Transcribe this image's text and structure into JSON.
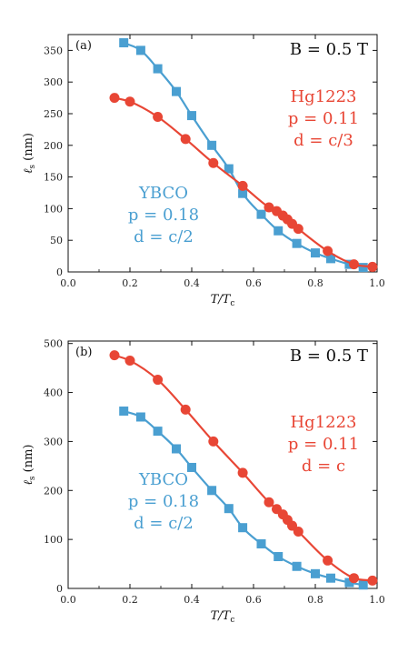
{
  "figure": {
    "colors": {
      "ybco": "#4a9fd1",
      "hg1223": "#e84635"
    },
    "x_tick_labels": [
      "0.0",
      "0.2",
      "0.4",
      "0.6",
      "0.8",
      "1.0"
    ],
    "x_label": "T/Tc"
  },
  "chart_data": [
    {
      "type": "line",
      "panel_label": "(a)",
      "field_text": "B = 0.5 T",
      "xlabel": "T/Tc",
      "ylabel": "ℓs (nm)",
      "xlim": [
        0.0,
        1.0
      ],
      "ylim": [
        0,
        375
      ],
      "y_ticks": [
        0,
        50,
        100,
        150,
        200,
        250,
        300,
        350
      ],
      "grid": false,
      "series": [
        {
          "name": "YBCO",
          "marker": "square",
          "color": "#4a9fd1",
          "label_lines": [
            "YBCO",
            "p = 0.18",
            "d = c/2"
          ],
          "x": [
            0.18,
            0.235,
            0.29,
            0.35,
            0.4,
            0.465,
            0.52,
            0.565,
            0.625,
            0.68,
            0.74,
            0.8,
            0.85,
            0.91,
            0.955
          ],
          "y": [
            362,
            350,
            321,
            285,
            247,
            200,
            163,
            124,
            91,
            65,
            45,
            30,
            21,
            12,
            7
          ]
        },
        {
          "name": "Hg1223",
          "marker": "circle",
          "color": "#e84635",
          "label_lines": [
            "Hg1223",
            "p = 0.11",
            "d = c/3"
          ],
          "x": [
            0.15,
            0.2,
            0.29,
            0.38,
            0.47,
            0.565,
            0.65,
            0.675,
            0.695,
            0.71,
            0.725,
            0.745,
            0.84,
            0.925,
            0.985
          ],
          "y": [
            275,
            269,
            245,
            210,
            172,
            136,
            102,
            96,
            89,
            83,
            76,
            68,
            33,
            12,
            8
          ]
        }
      ]
    },
    {
      "type": "line",
      "panel_label": "(b)",
      "field_text": "B = 0.5 T",
      "xlabel": "T/Tc",
      "ylabel": "ℓs (nm)",
      "xlim": [
        0.0,
        1.0
      ],
      "ylim": [
        0,
        505
      ],
      "y_ticks": [
        0,
        100,
        200,
        300,
        400,
        500
      ],
      "grid": false,
      "series": [
        {
          "name": "YBCO",
          "marker": "square",
          "color": "#4a9fd1",
          "label_lines": [
            "YBCO",
            "p = 0.18",
            "d = c/2"
          ],
          "x": [
            0.18,
            0.235,
            0.29,
            0.35,
            0.4,
            0.465,
            0.52,
            0.565,
            0.625,
            0.68,
            0.74,
            0.8,
            0.85,
            0.91,
            0.955
          ],
          "y": [
            362,
            350,
            321,
            285,
            247,
            200,
            163,
            124,
            91,
            65,
            45,
            30,
            21,
            12,
            7
          ]
        },
        {
          "name": "Hg1223",
          "marker": "circle",
          "color": "#e84635",
          "label_lines": [
            "Hg1223",
            "p = 0.11",
            "d = c"
          ],
          "x": [
            0.15,
            0.2,
            0.29,
            0.38,
            0.47,
            0.565,
            0.65,
            0.675,
            0.695,
            0.71,
            0.725,
            0.745,
            0.84,
            0.925,
            0.985
          ],
          "y": [
            476,
            465,
            426,
            365,
            300,
            236,
            176,
            162,
            151,
            140,
            128,
            116,
            57,
            21,
            16
          ]
        }
      ]
    }
  ]
}
